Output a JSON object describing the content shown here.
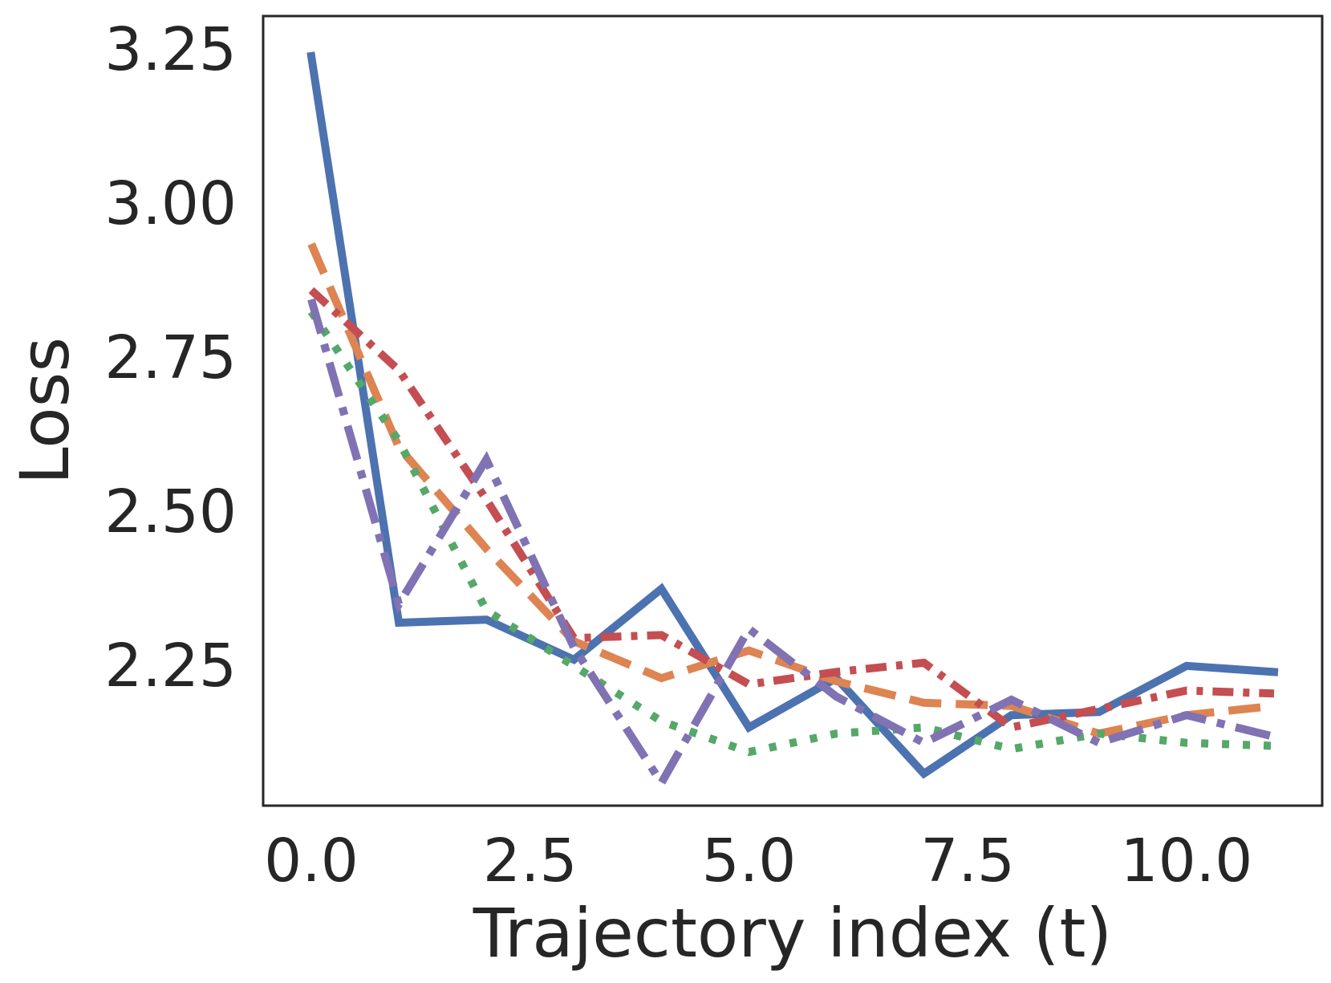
{
  "chart_data": {
    "type": "line",
    "title": "",
    "xlabel": "Trajectory index (t)",
    "ylabel": "Loss",
    "xlim": [
      -0.55,
      11.55
    ],
    "ylim": [
      2.023,
      3.305
    ],
    "x_ticks": [
      0.0,
      2.5,
      5.0,
      7.5,
      10.0
    ],
    "x_tick_labels": [
      "0.0",
      "2.5",
      "5.0",
      "7.5",
      "10.0"
    ],
    "y_ticks": [
      2.25,
      2.5,
      2.75,
      3.0,
      3.25
    ],
    "y_tick_labels": [
      "2.25",
      "2.50",
      "2.75",
      "3.00",
      "3.25"
    ],
    "grid": false,
    "legend": "none",
    "x": [
      0,
      1,
      2,
      3,
      4,
      5,
      6,
      7,
      8,
      9,
      10,
      11
    ],
    "series": [
      {
        "color": "#4c72b0",
        "line_style": "solid",
        "values": [
          3.24,
          2.32,
          2.325,
          2.26,
          2.375,
          2.15,
          2.23,
          2.075,
          2.17,
          2.175,
          2.25,
          2.24
        ]
      },
      {
        "color": "#dd8452",
        "line_style": "dashed",
        "values": [
          2.935,
          2.605,
          2.44,
          2.29,
          2.23,
          2.275,
          2.225,
          2.19,
          2.185,
          2.14,
          2.17,
          2.185
        ]
      },
      {
        "color": "#55a868",
        "line_style": "dotted",
        "values": [
          2.825,
          2.615,
          2.34,
          2.25,
          2.16,
          2.11,
          2.14,
          2.15,
          2.115,
          2.14,
          2.125,
          2.12
        ]
      },
      {
        "color": "#c44e52",
        "line_style": "dashdot-tight",
        "values": [
          2.86,
          2.73,
          2.52,
          2.295,
          2.3,
          2.22,
          2.24,
          2.255,
          2.15,
          2.18,
          2.21,
          2.205
        ]
      },
      {
        "color": "#8172b3",
        "line_style": "dashdot",
        "values": [
          2.845,
          2.35,
          2.585,
          2.28,
          2.06,
          2.31,
          2.2,
          2.125,
          2.195,
          2.125,
          2.17,
          2.135
        ]
      }
    ]
  }
}
